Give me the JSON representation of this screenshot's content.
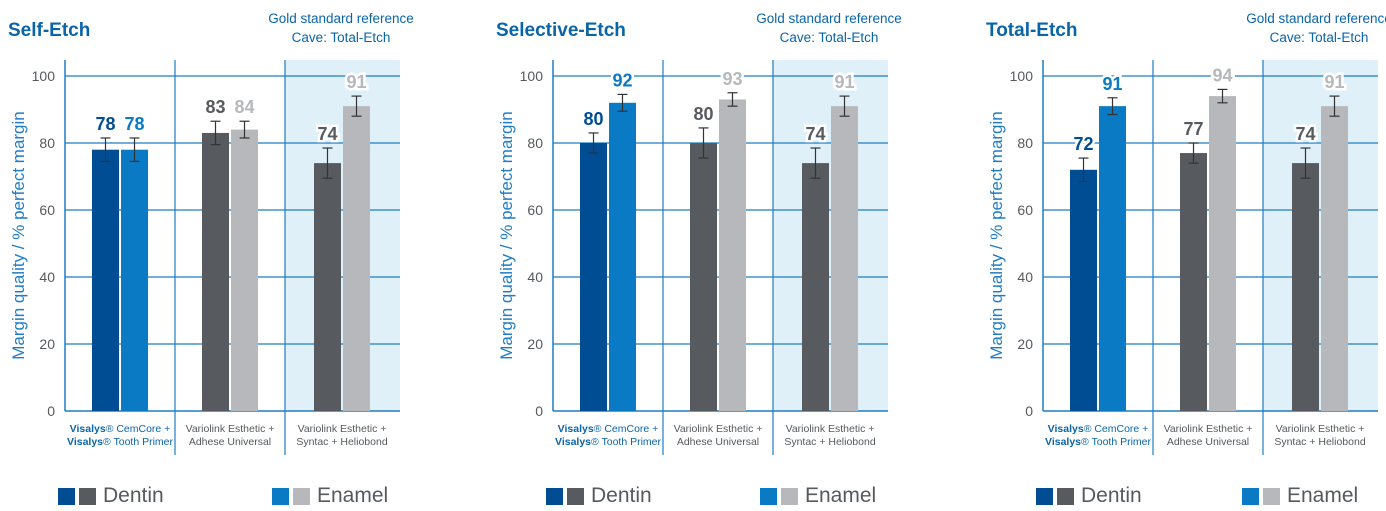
{
  "colors": {
    "dentin_visalys": "#004d94",
    "dentin_other": "#575b5f",
    "enamel_visalys": "#0a7ac4",
    "enamel_other": "#b7b8bb",
    "axis": "#1f7dc4",
    "highlight_bg": "#dff0f9",
    "text_blue": "#0a65a8",
    "text_gray": "#555a5e"
  },
  "chart_data": [
    {
      "type": "bar",
      "title": "Self-Etch",
      "note_line1": "Gold standard reference",
      "note_line2": "Cave: Total-Etch",
      "ylabel": "Margin quality / % perfect margin",
      "ylim": [
        0,
        100
      ],
      "yticks": [
        "0",
        "20",
        "40",
        "60",
        "80",
        "100"
      ],
      "groups": [
        {
          "label_parts": [
            {
              "text": "Visalys",
              "bold": true
            },
            {
              "text": "® CemCore +"
            }
          ],
          "label_parts2": [
            {
              "text": "Visalys",
              "bold": true
            },
            {
              "text": "® Tooth Primer"
            }
          ],
          "dentin": 78,
          "enamel": 78,
          "dentin_err": 3.5,
          "enamel_err": 3.5
        },
        {
          "label_line1": "Variolink Esthetic +",
          "label_line2": "Adhese Universal",
          "dentin": 83,
          "enamel": 84,
          "dentin_err": 3.5,
          "enamel_err": 2.5
        },
        {
          "label_line1": "Variolink Esthetic +",
          "label_line2": "Syntac + Heliobond",
          "dentin": 74,
          "enamel": 91,
          "dentin_err": 4.5,
          "enamel_err": 3
        }
      ],
      "legend": [
        "Dentin",
        "Enamel"
      ]
    },
    {
      "type": "bar",
      "title": "Selective-Etch",
      "note_line1": "Gold standard reference",
      "note_line2": "Cave: Total-Etch",
      "ylabel": "Margin quality / % perfect margin",
      "ylim": [
        0,
        100
      ],
      "yticks": [
        "0",
        "20",
        "40",
        "60",
        "80",
        "100"
      ],
      "groups": [
        {
          "label_parts": [
            {
              "text": "Visalys",
              "bold": true
            },
            {
              "text": "® CemCore +"
            }
          ],
          "label_parts2": [
            {
              "text": "Visalys",
              "bold": true
            },
            {
              "text": "® Tooth Primer"
            }
          ],
          "dentin": 80,
          "enamel": 92,
          "dentin_err": 3,
          "enamel_err": 2.5
        },
        {
          "label_line1": "Variolink Esthetic +",
          "label_line2": "Adhese Universal",
          "dentin": 80,
          "enamel": 93,
          "dentin_err": 4.5,
          "enamel_err": 2
        },
        {
          "label_line1": "Variolink Esthetic +",
          "label_line2": "Syntac + Heliobond",
          "dentin": 74,
          "enamel": 91,
          "dentin_err": 4.5,
          "enamel_err": 3
        }
      ],
      "legend": [
        "Dentin",
        "Enamel"
      ]
    },
    {
      "type": "bar",
      "title": "Total-Etch",
      "note_line1": "Gold standard reference",
      "note_line2": "Cave: Total-Etch",
      "ylabel": "Margin quality / % perfect margin",
      "ylim": [
        0,
        100
      ],
      "yticks": [
        "0",
        "20",
        "40",
        "60",
        "80",
        "100"
      ],
      "groups": [
        {
          "label_parts": [
            {
              "text": "Visalys",
              "bold": true
            },
            {
              "text": "® CemCore +"
            }
          ],
          "label_parts2": [
            {
              "text": "Visalys",
              "bold": true
            },
            {
              "text": "® Tooth Primer"
            }
          ],
          "dentin": 72,
          "enamel": 91,
          "dentin_err": 3.5,
          "enamel_err": 2.5
        },
        {
          "label_line1": "Variolink Esthetic +",
          "label_line2": "Adhese Universal",
          "dentin": 77,
          "enamel": 94,
          "dentin_err": 3,
          "enamel_err": 2
        },
        {
          "label_line1": "Variolink Esthetic +",
          "label_line2": "Syntac + Heliobond",
          "dentin": 74,
          "enamel": 91,
          "dentin_err": 4.5,
          "enamel_err": 3
        }
      ],
      "legend": [
        "Dentin",
        "Enamel"
      ]
    }
  ]
}
